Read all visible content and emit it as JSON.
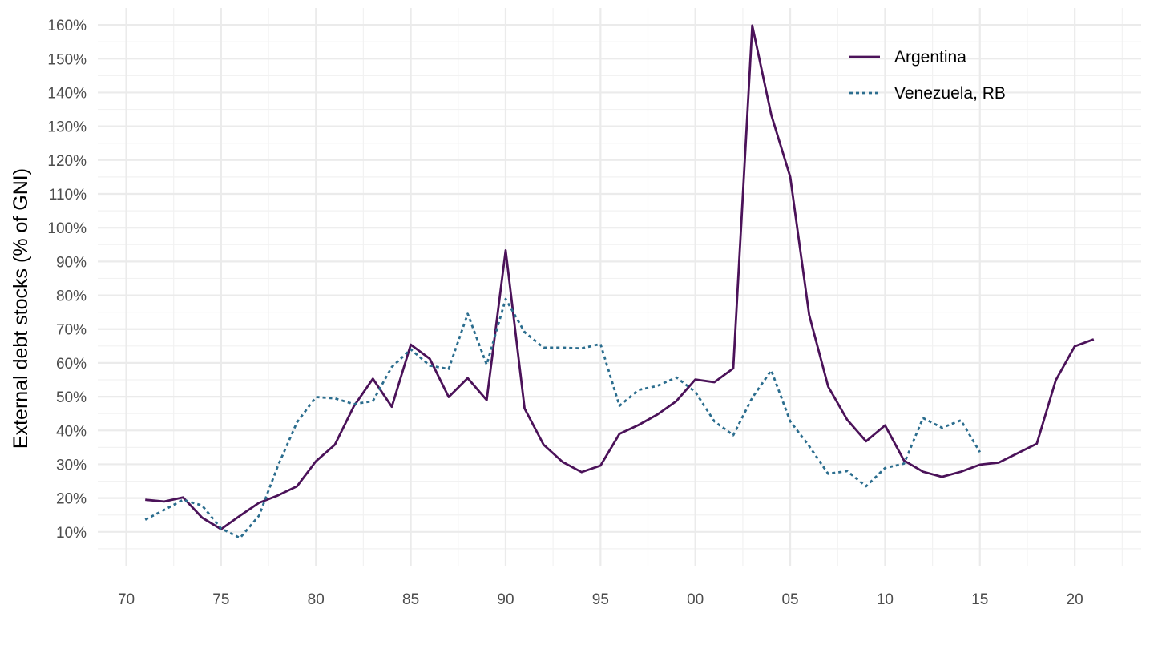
{
  "chart_data": {
    "type": "line",
    "ylabel": "External debt stocks (% of GNI)",
    "xlim": [
      1968.5,
      2023.5
    ],
    "ylim": [
      0.0,
      1.65
    ],
    "x_ticks": [
      {
        "value": 1970,
        "label": "70"
      },
      {
        "value": 1975,
        "label": "75"
      },
      {
        "value": 1980,
        "label": "80"
      },
      {
        "value": 1985,
        "label": "85"
      },
      {
        "value": 1990,
        "label": "90"
      },
      {
        "value": 1995,
        "label": "95"
      },
      {
        "value": 2000,
        "label": "00"
      },
      {
        "value": 2005,
        "label": "05"
      },
      {
        "value": 2010,
        "label": "10"
      },
      {
        "value": 2015,
        "label": "15"
      },
      {
        "value": 2020,
        "label": "20"
      }
    ],
    "y_ticks": [
      {
        "value": 0.1,
        "label": "10%"
      },
      {
        "value": 0.2,
        "label": "20%"
      },
      {
        "value": 0.3,
        "label": "30%"
      },
      {
        "value": 0.4,
        "label": "40%"
      },
      {
        "value": 0.5,
        "label": "50%"
      },
      {
        "value": 0.6,
        "label": "60%"
      },
      {
        "value": 0.7,
        "label": "70%"
      },
      {
        "value": 0.8,
        "label": "80%"
      },
      {
        "value": 0.9,
        "label": "90%"
      },
      {
        "value": 1.0,
        "label": "100%"
      },
      {
        "value": 1.1,
        "label": "110%"
      },
      {
        "value": 1.2,
        "label": "120%"
      },
      {
        "value": 1.3,
        "label": "130%"
      },
      {
        "value": 1.4,
        "label": "140%"
      },
      {
        "value": 1.5,
        "label": "150%"
      },
      {
        "value": 1.6,
        "label": "160%"
      }
    ],
    "grid": true,
    "legend_position": "top-right",
    "series": [
      {
        "name": "Argentina",
        "color": "#4b1259",
        "line_style": "solid",
        "x": [
          1971,
          1972,
          1973,
          1974,
          1975,
          1976,
          1977,
          1978,
          1979,
          1980,
          1981,
          1982,
          1983,
          1984,
          1985,
          1986,
          1987,
          1988,
          1989,
          1990,
          1991,
          1992,
          1993,
          1994,
          1995,
          1996,
          1997,
          1998,
          1999,
          2000,
          2001,
          2002,
          2003,
          2004,
          2005,
          2006,
          2007,
          2008,
          2009,
          2010,
          2011,
          2012,
          2013,
          2014,
          2015,
          2016,
          2017,
          2018,
          2019,
          2020,
          2021
        ],
        "y": [
          0.195,
          0.19,
          0.202,
          0.142,
          0.108,
          0.148,
          0.186,
          0.208,
          0.235,
          0.309,
          0.358,
          0.472,
          0.553,
          0.47,
          0.654,
          0.612,
          0.499,
          0.555,
          0.49,
          0.933,
          0.465,
          0.358,
          0.307,
          0.277,
          0.296,
          0.39,
          0.416,
          0.447,
          0.487,
          0.551,
          0.543,
          0.584,
          1.598,
          1.334,
          1.15,
          0.742,
          0.53,
          0.432,
          0.368,
          0.415,
          0.311,
          0.278,
          0.263,
          0.278,
          0.299,
          0.305,
          0.333,
          0.361,
          0.549,
          0.649,
          0.67
        ]
      },
      {
        "name": "Venezuela, RB",
        "color": "#2b6d8e",
        "line_style": "dotted",
        "x": [
          1971,
          1972,
          1973,
          1974,
          1975,
          1976,
          1977,
          1978,
          1979,
          1980,
          1981,
          1982,
          1983,
          1984,
          1985,
          1986,
          1987,
          1988,
          1989,
          1990,
          1991,
          1992,
          1993,
          1994,
          1995,
          1996,
          1997,
          1998,
          1999,
          2000,
          2001,
          2002,
          2003,
          2004,
          2005,
          2006,
          2007,
          2008,
          2009,
          2010,
          2011,
          2012,
          2013,
          2014,
          2015
        ],
        "y": [
          0.136,
          0.165,
          0.195,
          0.178,
          0.11,
          0.082,
          0.148,
          0.296,
          0.424,
          0.499,
          0.495,
          0.478,
          0.487,
          0.588,
          0.64,
          0.592,
          0.582,
          0.745,
          0.595,
          0.789,
          0.691,
          0.645,
          0.645,
          0.643,
          0.656,
          0.473,
          0.52,
          0.532,
          0.557,
          0.514,
          0.427,
          0.386,
          0.497,
          0.578,
          0.427,
          0.354,
          0.272,
          0.28,
          0.235,
          0.289,
          0.302,
          0.437,
          0.408,
          0.43,
          0.336
        ]
      }
    ]
  }
}
